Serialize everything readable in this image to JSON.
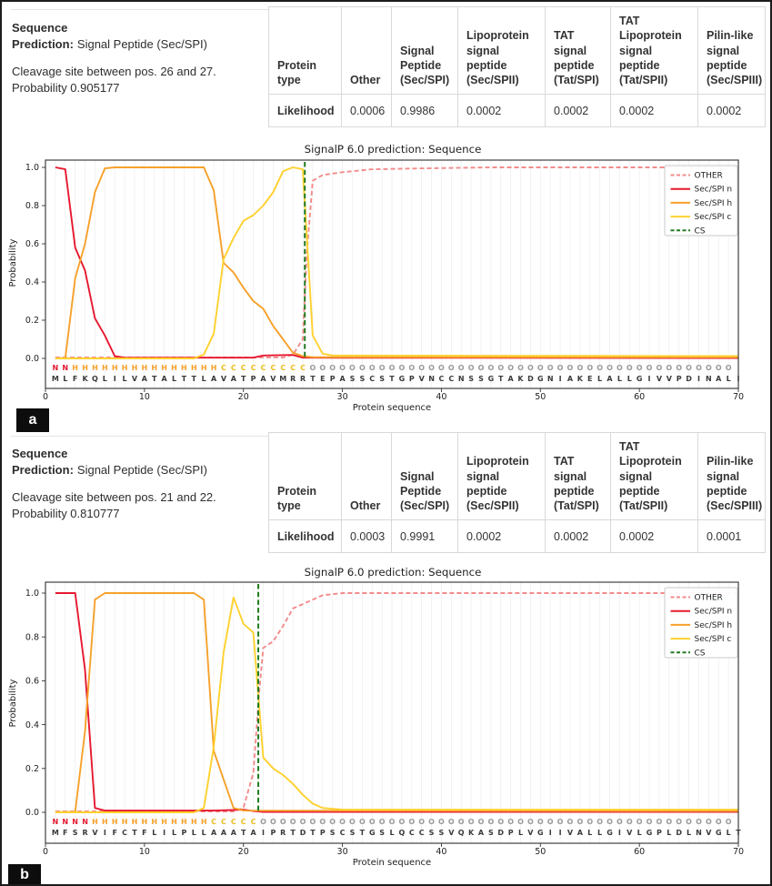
{
  "figure": {
    "background": "#ffffff",
    "border_color": "#1c1c1c"
  },
  "colors": {
    "other": "#f28b8b",
    "n": "#e7182f",
    "h": "#f6a12b",
    "c": "#ffd12e",
    "cs": "#217a21",
    "state_N": "#e7182f",
    "state_H": "#f6a12b",
    "state_C": "#edbe1d",
    "state_O": "#9a9a9a",
    "grid": "#ededed",
    "frame": "#3f3f3f",
    "table_border": "#d9d9d9",
    "seq_letters": "#3a3a3a"
  },
  "panels": [
    {
      "badge": "a",
      "header": {
        "title": "Sequence",
        "prediction_label": "Prediction:",
        "prediction_value": "Signal Peptide (Sec/SPI)",
        "cleavage": "Cleavage site between pos. 26 and 27.",
        "probability": "Probability 0.905177"
      },
      "table": {
        "headers": [
          "Protein type",
          "Other",
          "Signal Peptide (Sec/SPI)",
          "Lipoprotein signal peptide (Sec/SPII)",
          "TAT signal peptide (Tat/SPI)",
          "TAT Lipoprotein signal peptide (Tat/SPII)",
          "Pilin-like signal peptide (Sec/SPIII)"
        ],
        "row_label": "Likelihood",
        "values": [
          "0.0006",
          "0.9986",
          "0.0002",
          "0.0002",
          "0.0002",
          "0.0002"
        ]
      },
      "chart_data": {
        "type": "line",
        "title": "SignalP 6.0 prediction: Sequence",
        "xlabel": "Protein sequence",
        "ylabel": "Probability",
        "xlim": [
          0,
          70
        ],
        "ylim": [
          0.0,
          1.0
        ],
        "xticks": [
          0,
          10,
          20,
          30,
          40,
          50,
          60,
          70
        ],
        "yticks": [
          0.0,
          0.2,
          0.4,
          0.6,
          0.8,
          1.0
        ],
        "grid": "vertical line per residue",
        "legend_position": "upper right",
        "cs_line_x": 26.2,
        "series": [
          {
            "name": "OTHER",
            "color_key": "other",
            "dash": true,
            "points": [
              [
                1,
                0.005
              ],
              [
                24,
                0.005
              ],
              [
                25,
                0.02
              ],
              [
                26,
                0.1
              ],
              [
                26.4,
                0.55
              ],
              [
                27,
                0.93
              ],
              [
                28,
                0.96
              ],
              [
                30,
                0.975
              ],
              [
                33,
                0.99
              ],
              [
                38,
                0.995
              ],
              [
                45,
                1.0
              ],
              [
                70,
                1.0
              ]
            ]
          },
          {
            "name": "Sec/SPI n",
            "color_key": "n",
            "dash": false,
            "points": [
              [
                1,
                1.0
              ],
              [
                2,
                0.99
              ],
              [
                3,
                0.58
              ],
              [
                4,
                0.46
              ],
              [
                5,
                0.21
              ],
              [
                6,
                0.12
              ],
              [
                7,
                0.012
              ],
              [
                8,
                0.004
              ],
              [
                21,
                0.004
              ],
              [
                22,
                0.015
              ],
              [
                25,
                0.018
              ],
              [
                26,
                0.004
              ],
              [
                70,
                0.002
              ]
            ]
          },
          {
            "name": "Sec/SPI h",
            "color_key": "h",
            "dash": false,
            "points": [
              [
                1,
                0.0
              ],
              [
                2,
                0.002
              ],
              [
                3,
                0.42
              ],
              [
                4,
                0.6
              ],
              [
                5,
                0.87
              ],
              [
                6,
                0.995
              ],
              [
                7,
                1.0
              ],
              [
                16,
                1.0
              ],
              [
                17,
                0.88
              ],
              [
                18,
                0.5
              ],
              [
                19,
                0.45
              ],
              [
                20,
                0.37
              ],
              [
                21,
                0.3
              ],
              [
                22,
                0.26
              ],
              [
                23,
                0.17
              ],
              [
                24,
                0.1
              ],
              [
                25,
                0.03
              ],
              [
                26,
                0.012
              ],
              [
                27,
                0.006
              ],
              [
                70,
                0.006
              ]
            ]
          },
          {
            "name": "Sec/SPI c",
            "color_key": "c",
            "dash": false,
            "points": [
              [
                1,
                0.0
              ],
              [
                15,
                0.0
              ],
              [
                16,
                0.02
              ],
              [
                17,
                0.13
              ],
              [
                18,
                0.52
              ],
              [
                19,
                0.63
              ],
              [
                20,
                0.72
              ],
              [
                21,
                0.75
              ],
              [
                22,
                0.8
              ],
              [
                23,
                0.87
              ],
              [
                24,
                0.98
              ],
              [
                25,
                1.0
              ],
              [
                26,
                0.99
              ],
              [
                27,
                0.12
              ],
              [
                28,
                0.025
              ],
              [
                29,
                0.015
              ],
              [
                70,
                0.012
              ]
            ]
          },
          {
            "name": "CS",
            "color_key": "cs",
            "dash": true,
            "vertical": true
          }
        ],
        "sequence": "MLFKQLILVATALTTLAVATPAVMRRTEPASSCSTGPVNCCNSSGTAKDGNIAKELALLGIVVPDINALI",
        "states": "NNHHHHHHHHHHHHHHHCCCCCCCCCOOOOOOOOOOOOOOOOOOOOOOOOOOOOOOOOOOOOOOOOOOO"
      }
    },
    {
      "badge": "b",
      "header": {
        "title": "Sequence",
        "prediction_label": "Prediction:",
        "prediction_value": "Signal Peptide (Sec/SPI)",
        "cleavage": "Cleavage site between pos. 21 and 22.",
        "probability": "Probability 0.810777"
      },
      "table": {
        "headers": [
          "Protein type",
          "Other",
          "Signal Peptide (Sec/SPI)",
          "Lipoprotein signal peptide (Sec/SPII)",
          "TAT signal peptide (Tat/SPI)",
          "TAT Lipoprotein signal peptide (Tat/SPII)",
          "Pilin-like signal peptide (Sec/SPIII)"
        ],
        "row_label": "Likelihood",
        "values": [
          "0.0003",
          "0.9991",
          "0.0002",
          "0.0002",
          "0.0002",
          "0.0001"
        ]
      },
      "chart_data": {
        "type": "line",
        "title": "SignalP 6.0 prediction: Sequence",
        "xlabel": "Protein sequence",
        "ylabel": "Probability",
        "xlim": [
          0,
          70
        ],
        "ylim": [
          0.0,
          1.0
        ],
        "xticks": [
          0,
          10,
          20,
          30,
          40,
          50,
          60,
          70
        ],
        "yticks": [
          0.0,
          0.2,
          0.4,
          0.6,
          0.8,
          1.0
        ],
        "grid": "vertical line per residue",
        "legend_position": "upper right",
        "cs_line_x": 21.5,
        "series": [
          {
            "name": "OTHER",
            "color_key": "other",
            "dash": true,
            "points": [
              [
                1,
                0.004
              ],
              [
                19,
                0.004
              ],
              [
                20,
                0.02
              ],
              [
                21,
                0.18
              ],
              [
                21.6,
                0.55
              ],
              [
                22,
                0.75
              ],
              [
                23,
                0.78
              ],
              [
                24,
                0.85
              ],
              [
                25,
                0.93
              ],
              [
                26,
                0.95
              ],
              [
                27,
                0.97
              ],
              [
                28,
                0.99
              ],
              [
                30,
                1.0
              ],
              [
                70,
                1.0
              ]
            ]
          },
          {
            "name": "Sec/SPI n",
            "color_key": "n",
            "dash": false,
            "points": [
              [
                1,
                1.0
              ],
              [
                2,
                1.0
              ],
              [
                3,
                1.0
              ],
              [
                4,
                0.65
              ],
              [
                5,
                0.02
              ],
              [
                6,
                0.008
              ],
              [
                17,
                0.008
              ],
              [
                20,
                0.012
              ],
              [
                21,
                0.006
              ],
              [
                22,
                0.002
              ],
              [
                70,
                0.002
              ]
            ]
          },
          {
            "name": "Sec/SPI h",
            "color_key": "h",
            "dash": false,
            "points": [
              [
                1,
                0.0
              ],
              [
                3,
                0.002
              ],
              [
                4,
                0.37
              ],
              [
                5,
                0.97
              ],
              [
                6,
                1.0
              ],
              [
                15,
                1.0
              ],
              [
                16,
                0.97
              ],
              [
                17,
                0.28
              ],
              [
                18,
                0.15
              ],
              [
                19,
                0.02
              ],
              [
                20,
                0.008
              ],
              [
                70,
                0.006
              ]
            ]
          },
          {
            "name": "Sec/SPI c",
            "color_key": "c",
            "dash": false,
            "points": [
              [
                1,
                0.0
              ],
              [
                15,
                0.0
              ],
              [
                16,
                0.02
              ],
              [
                17,
                0.3
              ],
              [
                18,
                0.73
              ],
              [
                19,
                0.98
              ],
              [
                20,
                0.86
              ],
              [
                21,
                0.82
              ],
              [
                22,
                0.25
              ],
              [
                23,
                0.2
              ],
              [
                24,
                0.17
              ],
              [
                25,
                0.13
              ],
              [
                26,
                0.08
              ],
              [
                27,
                0.04
              ],
              [
                28,
                0.02
              ],
              [
                30,
                0.012
              ],
              [
                70,
                0.012
              ]
            ]
          },
          {
            "name": "CS",
            "color_key": "cs",
            "dash": true,
            "vertical": true
          }
        ],
        "sequence": "MFSRVIFCTFLILPLLAAATAIPRTDTPSCSTGSLQCCSSVQKASDPLVGIIVALLGIVLGPLDLNVGLT",
        "states": "NNNNHHHHHHHHHHHHCCCCCOOOOOOOOOOOOOOOOOOOOOOOOOOOOOOOOOOOOOOOOOOOOOOOO"
      }
    }
  ]
}
